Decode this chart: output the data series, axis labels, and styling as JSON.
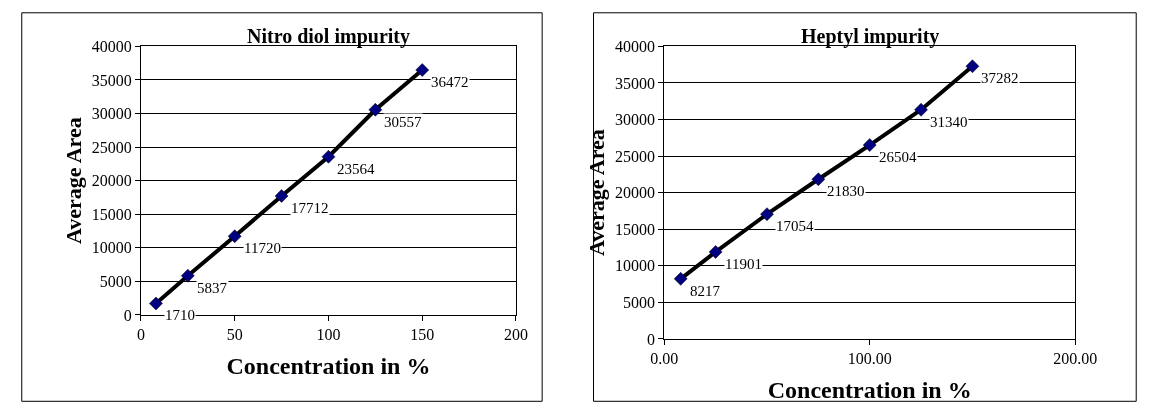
{
  "chart_data": [
    {
      "type": "scatter",
      "title": "Nitro diol impurity",
      "xlabel": "Concentration in %",
      "ylabel": "Average Area",
      "x": [
        8,
        25,
        50,
        75,
        100,
        125,
        150
      ],
      "series": [
        {
          "type": "line",
          "color": "#000000",
          "marker": "none",
          "values": [
            1710,
            5837,
            11720,
            17712,
            23564,
            30557,
            36472
          ]
        },
        {
          "color": "#000080",
          "marker": "diamond",
          "values": [
            1710,
            5837,
            11720,
            17712,
            23564,
            30557,
            36472
          ],
          "data_labels": true
        }
      ],
      "xlim": [
        0,
        200
      ],
      "xticks": [
        0,
        50,
        100,
        150,
        200
      ],
      "ylim": [
        0,
        40000
      ],
      "yticks": [
        0,
        5000,
        10000,
        15000,
        20000,
        25000,
        30000,
        35000,
        40000
      ],
      "grid": "y"
    },
    {
      "type": "scatter",
      "title": "Heptyl impurity",
      "xlabel": "Concentration in %",
      "ylabel": "Average Area",
      "x": [
        8,
        25,
        50,
        75,
        100,
        125,
        150
      ],
      "series": [
        {
          "type": "line",
          "color": "#000000",
          "marker": "none",
          "values": [
            8217,
            11901,
            17054,
            21830,
            26504,
            31340,
            37282
          ]
        },
        {
          "color": "#000080",
          "marker": "diamond",
          "values": [
            8217,
            11901,
            17054,
            21830,
            26504,
            31340,
            37282
          ],
          "data_labels": true
        }
      ],
      "xlim": [
        0,
        200
      ],
      "xticks": [
        {
          "value": 0,
          "label": "0.00"
        },
        {
          "value": 100,
          "label": "100.00"
        },
        {
          "value": 200,
          "label": "200.00"
        }
      ],
      "ylim": [
        0,
        40000
      ],
      "yticks": [
        0,
        5000,
        10000,
        15000,
        20000,
        25000,
        30000,
        35000,
        40000
      ],
      "grid": "y"
    }
  ]
}
